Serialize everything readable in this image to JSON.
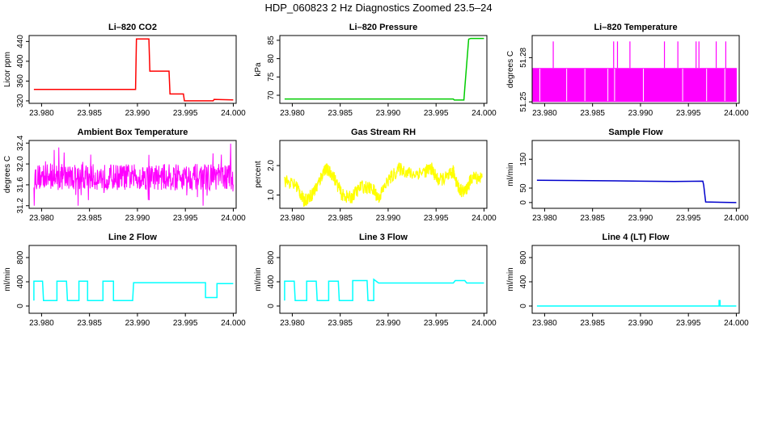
{
  "title": "HDP_060823  2 Hz Diagnostics Zoomed 23.5–24",
  "chart_data": [
    {
      "type": "line",
      "title": "Li–820 CO2",
      "xlabel": "",
      "ylabel": "Licor ppm",
      "color": "#ff0000",
      "xlim": [
        23.9787,
        24.0003
      ],
      "ylim": [
        315,
        452
      ],
      "xticks": [
        "23.980",
        "23.985",
        "23.990",
        "23.995",
        "24.000"
      ],
      "xtick_values": [
        23.98,
        23.985,
        23.99,
        23.995,
        24.0
      ],
      "yticks": [
        "320",
        "360",
        "400",
        "440"
      ],
      "ytick_values": [
        320,
        360,
        400,
        440
      ],
      "x": [
        23.9792,
        23.9898,
        23.9899,
        23.9912,
        23.9913,
        23.9922,
        23.9923,
        23.9933,
        23.9934,
        23.9948,
        23.9949,
        23.9979,
        23.998,
        24.0
      ],
      "y": [
        343,
        343,
        445,
        445,
        380,
        380,
        380,
        380,
        334,
        334,
        320,
        320,
        323,
        322
      ]
    },
    {
      "type": "line",
      "title": "Li–820 Pressure",
      "xlabel": "",
      "ylabel": "kPa",
      "color": "#00cc00",
      "xlim": [
        23.9787,
        24.0003
      ],
      "ylim": [
        67.8,
        86.3
      ],
      "xticks": [
        "23.980",
        "23.985",
        "23.990",
        "23.995",
        "24.000"
      ],
      "xtick_values": [
        23.98,
        23.985,
        23.99,
        23.995,
        24.0
      ],
      "yticks": [
        "70",
        "75",
        "80",
        "85"
      ],
      "ytick_values": [
        70,
        75,
        80,
        85
      ],
      "x": [
        23.9792,
        23.9968,
        23.9969,
        23.9979,
        23.998,
        23.9983,
        23.9984,
        23.9986,
        24.0
      ],
      "y": [
        69.0,
        69.0,
        68.7,
        68.7,
        72.0,
        82.0,
        85.3,
        85.5,
        85.5
      ]
    },
    {
      "type": "line",
      "title": "Li–820 Temperature",
      "xlabel": "",
      "ylabel": "degrees C",
      "color": "#ff00ff",
      "xlim": [
        23.9787,
        24.0003
      ],
      "ylim": [
        51.249,
        51.295
      ],
      "xticks": [
        "23.980",
        "23.985",
        "23.990",
        "23.995",
        "24.000"
      ],
      "xtick_values": [
        23.98,
        23.985,
        23.99,
        23.995,
        24.0
      ],
      "yticks": [
        "51.25",
        "51.28"
      ],
      "ytick_values": [
        51.25,
        51.28
      ],
      "band": [
        51.25,
        51.273
      ],
      "spikes": [
        23.9809,
        23.9872,
        23.9876,
        23.9889,
        23.9925,
        23.9939,
        23.9958,
        23.9961,
        23.9979,
        23.9989
      ],
      "spike_top": 51.291
    },
    {
      "type": "line",
      "title": "Ambient Box Temperature",
      "xlabel": "",
      "ylabel": "degrees C",
      "color": "#ff00ff",
      "xlim": [
        23.9787,
        24.0003
      ],
      "ylim": [
        31.15,
        32.45
      ],
      "xticks": [
        "23.980",
        "23.985",
        "23.990",
        "23.995",
        "24.000"
      ],
      "xtick_values": [
        23.98,
        23.985,
        23.99,
        23.995,
        24.0
      ],
      "yticks": [
        "31.2",
        "31.6",
        "32.0",
        "32.4"
      ],
      "ytick_values": [
        31.2,
        31.6,
        32.0,
        32.4
      ],
      "noise_center": 31.75,
      "noise_amp": 0.25,
      "noise_max": 32.4,
      "noise_min": 31.2
    },
    {
      "type": "line",
      "title": "Gas Stream RH",
      "xlabel": "",
      "ylabel": "percent",
      "color": "#ffff00",
      "xlim": [
        23.9787,
        24.0003
      ],
      "ylim": [
        0.55,
        2.85
      ],
      "xticks": [
        "23.980",
        "23.985",
        "23.990",
        "23.995",
        "24.000"
      ],
      "xtick_values": [
        23.98,
        23.985,
        23.99,
        23.995,
        24.0
      ],
      "yticks": [
        "1.0",
        "2.0"
      ],
      "ytick_values": [
        1.0,
        2.0
      ],
      "x": [
        23.9792,
        23.9805,
        23.9812,
        23.982,
        23.9826,
        23.9834,
        23.9842,
        23.9852,
        23.9861,
        23.9872,
        23.9884,
        23.989,
        23.99,
        23.9912,
        23.9925,
        23.9938,
        23.9945,
        23.9952,
        23.9962,
        23.9968,
        23.9974,
        23.998,
        23.9988,
        23.9998
      ],
      "y": [
        1.5,
        1.3,
        0.8,
        1.0,
        1.3,
        1.9,
        1.7,
        1.0,
        0.9,
        1.3,
        1.2,
        0.9,
        1.5,
        1.9,
        1.7,
        1.8,
        1.9,
        1.5,
        1.6,
        1.8,
        1.2,
        1.1,
        1.6,
        1.6
      ]
    },
    {
      "type": "line",
      "title": "Sample Flow",
      "xlabel": "",
      "ylabel": "ml/min",
      "color": "#0000cc",
      "xlim": [
        23.9787,
        24.0003
      ],
      "ylim": [
        -20,
        215
      ],
      "xticks": [
        "23.980",
        "23.985",
        "23.990",
        "23.995",
        "24.000"
      ],
      "xtick_values": [
        23.98,
        23.985,
        23.99,
        23.995,
        24.0
      ],
      "yticks": [
        "0",
        "50",
        "150"
      ],
      "ytick_values": [
        0,
        50,
        150
      ],
      "x": [
        23.9792,
        23.985,
        23.99,
        23.9935,
        23.9965,
        23.9966,
        23.9968,
        24.0
      ],
      "y": [
        77,
        76,
        74,
        73,
        74,
        60,
        2,
        0
      ]
    },
    {
      "type": "line",
      "title": "Line 2 Flow",
      "xlabel": "",
      "ylabel": "ml/min",
      "color": "#00ffff",
      "xlim": [
        23.9787,
        24.0003
      ],
      "ylim": [
        -120,
        1000
      ],
      "xticks": [
        "23.980",
        "23.985",
        "23.990",
        "23.995",
        "24.000"
      ],
      "xtick_values": [
        23.98,
        23.985,
        23.99,
        23.995,
        24.0
      ],
      "yticks": [
        "0",
        "400",
        "800"
      ],
      "ytick_values": [
        0,
        400,
        800
      ],
      "x": [
        23.9792,
        23.9792,
        23.9801,
        23.9802,
        23.9816,
        23.9816,
        23.9826,
        23.9827,
        23.9839,
        23.9839,
        23.9848,
        23.9848,
        23.9864,
        23.9864,
        23.9875,
        23.9875,
        23.9895,
        23.9896,
        23.9971,
        23.9971,
        23.9983,
        23.9983,
        24.0
      ],
      "y": [
        90,
        410,
        410,
        90,
        90,
        410,
        410,
        90,
        90,
        410,
        410,
        90,
        90,
        410,
        410,
        90,
        90,
        385,
        385,
        140,
        140,
        370,
        370
      ]
    },
    {
      "type": "line",
      "title": "Line 3 Flow",
      "xlabel": "",
      "ylabel": "ml/min",
      "color": "#00ffff",
      "xlim": [
        23.9787,
        24.0003
      ],
      "ylim": [
        -120,
        1000
      ],
      "xticks": [
        "23.980",
        "23.985",
        "23.990",
        "23.995",
        "24.000"
      ],
      "xtick_values": [
        23.98,
        23.985,
        23.99,
        23.995,
        24.0
      ],
      "yticks": [
        "0",
        "400",
        "800"
      ],
      "ytick_values": [
        0,
        400,
        800
      ],
      "x": [
        23.9792,
        23.9792,
        23.9802,
        23.9803,
        23.9815,
        23.9815,
        23.9825,
        23.9826,
        23.9838,
        23.9838,
        23.9848,
        23.9849,
        23.9863,
        23.9863,
        23.9878,
        23.9879,
        23.9885,
        23.9885,
        23.989,
        23.9968,
        23.997,
        23.998,
        23.9982,
        24.0
      ],
      "y": [
        90,
        410,
        410,
        90,
        90,
        410,
        410,
        90,
        90,
        410,
        410,
        90,
        90,
        420,
        420,
        90,
        90,
        440,
        380,
        380,
        420,
        420,
        380,
        380
      ]
    },
    {
      "type": "line",
      "title": "Line 4 (LT) Flow",
      "xlabel": "",
      "ylabel": "ml/min",
      "color": "#00ffff",
      "xlim": [
        23.9787,
        24.0003
      ],
      "ylim": [
        -120,
        1000
      ],
      "xticks": [
        "23.980",
        "23.985",
        "23.990",
        "23.995",
        "24.000"
      ],
      "xtick_values": [
        23.98,
        23.985,
        23.99,
        23.995,
        24.0
      ],
      "yticks": [
        "0",
        "400",
        "800"
      ],
      "ytick_values": [
        0,
        400,
        800
      ],
      "x": [
        23.9792,
        23.9982,
        23.9982,
        23.9983,
        23.9983,
        24.0
      ],
      "y": [
        0,
        0,
        90,
        90,
        0,
        0
      ]
    }
  ]
}
